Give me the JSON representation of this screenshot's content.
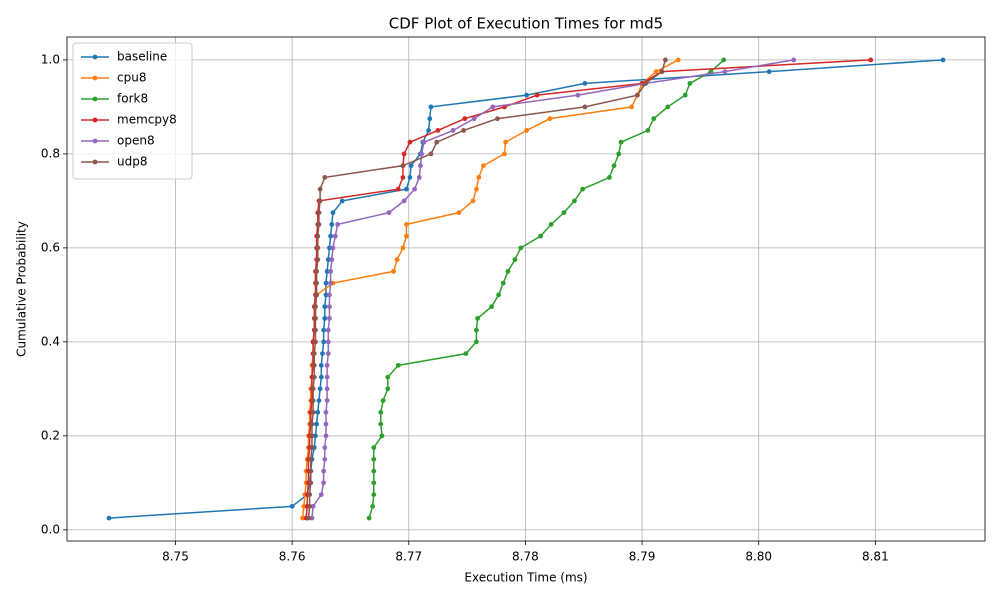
{
  "chart_data": {
    "type": "line",
    "title": "CDF Plot of Execution Times for md5",
    "x_label": "Execution Time (ms)",
    "y_label": "Cumulative Probability",
    "xlim": [
      8.7407,
      8.8194
    ],
    "ylim": [
      -0.02375,
      1.04875
    ],
    "xticks": [
      8.75,
      8.76,
      8.77,
      8.78,
      8.79,
      {
        "value": 8.8,
        "label": "8.80"
      },
      8.81
    ],
    "yticks": [
      {
        "value": 0,
        "label": "0.0"
      },
      0.2,
      0.4,
      0.6,
      0.8,
      {
        "value": 1,
        "label": "1.0"
      }
    ],
    "grid": true,
    "legend": "upper left",
    "series": [
      {
        "name": "baseline",
        "color": "#1f77b4",
        "x": [
          8.7443,
          8.76,
          8.7613,
          8.7615,
          8.7616,
          8.7617,
          8.7619,
          8.762,
          8.7621,
          8.7622,
          8.7623,
          8.7624,
          8.7625,
          8.7625,
          8.7626,
          8.7627,
          8.7627,
          8.7628,
          8.7628,
          8.7629,
          8.7629,
          8.763,
          8.7631,
          8.7632,
          8.7633,
          8.7634,
          8.7635,
          8.7643,
          8.7698,
          8.7701,
          8.7702,
          8.771,
          8.7712,
          8.7717,
          8.7718,
          8.7719,
          8.7801,
          8.7851,
          8.8009,
          8.8158
        ],
        "values": [
          0.025,
          0.05,
          0.075,
          0.1,
          0.125,
          0.15,
          0.175,
          0.2,
          0.225,
          0.25,
          0.275,
          0.3,
          0.325,
          0.35,
          0.375,
          0.4,
          0.425,
          0.45,
          0.475,
          0.5,
          0.525,
          0.55,
          0.575,
          0.6,
          0.625,
          0.65,
          0.675,
          0.7,
          0.725,
          0.75,
          0.775,
          0.8,
          0.825,
          0.85,
          0.875,
          0.9,
          0.925,
          0.95,
          0.975,
          1.0
        ]
      },
      {
        "name": "cpu8",
        "color": "#ff7f0e",
        "x": [
          8.7609,
          8.761,
          8.7611,
          8.7612,
          8.7612,
          8.7613,
          8.7614,
          8.7614,
          8.7615,
          8.7615,
          8.7616,
          8.7616,
          8.7617,
          8.7617,
          8.7618,
          8.7618,
          8.7619,
          8.762,
          8.762,
          8.7621,
          8.7635,
          8.7687,
          8.769,
          8.7695,
          8.7698,
          8.7698,
          8.7743,
          8.7755,
          8.7758,
          8.776,
          8.7764,
          8.7782,
          8.7783,
          8.7801,
          8.7821,
          8.7891,
          8.7896,
          8.79,
          8.7912,
          8.7931
        ],
        "values": [
          0.025,
          0.05,
          0.075,
          0.1,
          0.125,
          0.15,
          0.175,
          0.2,
          0.225,
          0.25,
          0.275,
          0.3,
          0.325,
          0.35,
          0.375,
          0.4,
          0.425,
          0.45,
          0.475,
          0.5,
          0.525,
          0.55,
          0.575,
          0.6,
          0.625,
          0.65,
          0.675,
          0.7,
          0.725,
          0.75,
          0.775,
          0.8,
          0.825,
          0.85,
          0.875,
          0.9,
          0.925,
          0.95,
          0.975,
          1.0
        ]
      },
      {
        "name": "fork8",
        "color": "#2ca02c",
        "x": [
          8.7666,
          8.7669,
          8.767,
          8.767,
          8.767,
          8.767,
          8.767,
          8.7677,
          8.7676,
          8.7676,
          8.7678,
          8.7682,
          8.7682,
          8.7691,
          8.7749,
          8.7758,
          8.7758,
          8.7759,
          8.7771,
          8.7777,
          8.7781,
          8.7785,
          8.7791,
          8.7796,
          8.7813,
          8.7822,
          8.7833,
          8.7842,
          8.7849,
          8.7872,
          8.7876,
          8.788,
          8.7882,
          8.7905,
          8.791,
          8.7922,
          8.7937,
          8.7941,
          8.7959,
          8.797
        ],
        "values": [
          0.025,
          0.05,
          0.075,
          0.1,
          0.125,
          0.15,
          0.175,
          0.2,
          0.225,
          0.25,
          0.275,
          0.3,
          0.325,
          0.35,
          0.375,
          0.4,
          0.425,
          0.45,
          0.475,
          0.5,
          0.525,
          0.55,
          0.575,
          0.6,
          0.625,
          0.65,
          0.675,
          0.7,
          0.725,
          0.75,
          0.775,
          0.8,
          0.825,
          0.85,
          0.875,
          0.9,
          0.925,
          0.95,
          0.975,
          1.0
        ]
      },
      {
        "name": "memcpy8",
        "color": "#d62728",
        "x": [
          8.7612,
          8.7613,
          8.7613,
          8.7614,
          8.7614,
          8.7614,
          8.7615,
          8.7615,
          8.7616,
          8.7616,
          8.7617,
          8.7617,
          8.7617,
          8.7618,
          8.7618,
          8.7618,
          8.7619,
          8.7619,
          8.7619,
          8.762,
          8.762,
          8.762,
          8.7621,
          8.7621,
          8.7621,
          8.7622,
          8.7622,
          8.7623,
          8.7691,
          8.7695,
          8.7695,
          8.7696,
          8.7701,
          8.7725,
          8.7748,
          8.7782,
          8.781,
          8.79,
          8.7917,
          8.8096
        ],
        "values": [
          0.025,
          0.05,
          0.075,
          0.1,
          0.125,
          0.15,
          0.175,
          0.2,
          0.225,
          0.25,
          0.275,
          0.3,
          0.325,
          0.35,
          0.375,
          0.4,
          0.425,
          0.45,
          0.475,
          0.5,
          0.525,
          0.55,
          0.575,
          0.6,
          0.625,
          0.65,
          0.675,
          0.7,
          0.725,
          0.75,
          0.775,
          0.8,
          0.825,
          0.85,
          0.875,
          0.9,
          0.925,
          0.95,
          0.975,
          1.0
        ]
      },
      {
        "name": "open8",
        "color": "#9467bd",
        "x": [
          8.7617,
          8.7618,
          8.7625,
          8.7627,
          8.7627,
          8.7628,
          8.7628,
          8.7629,
          8.7629,
          8.7629,
          8.763,
          8.763,
          8.763,
          8.763,
          8.7631,
          8.7631,
          8.7631,
          8.7632,
          8.7632,
          8.7632,
          8.7633,
          8.7633,
          8.7634,
          8.7635,
          8.7637,
          8.7639,
          8.7683,
          8.7696,
          8.7705,
          8.7709,
          8.771,
          8.7711,
          8.7713,
          8.7738,
          8.7756,
          8.7772,
          8.7845,
          8.7903,
          8.7971,
          8.803
        ],
        "values": [
          0.025,
          0.05,
          0.075,
          0.1,
          0.125,
          0.15,
          0.175,
          0.2,
          0.225,
          0.25,
          0.275,
          0.3,
          0.325,
          0.35,
          0.375,
          0.4,
          0.425,
          0.45,
          0.475,
          0.5,
          0.525,
          0.55,
          0.575,
          0.6,
          0.625,
          0.65,
          0.675,
          0.7,
          0.725,
          0.75,
          0.775,
          0.8,
          0.825,
          0.85,
          0.875,
          0.9,
          0.925,
          0.95,
          0.975,
          1.0
        ]
      },
      {
        "name": "udp8",
        "color": "#8c564b",
        "x": [
          8.7614,
          8.7615,
          8.7615,
          8.7616,
          8.7616,
          8.7616,
          8.7617,
          8.7617,
          8.7617,
          8.7618,
          8.7618,
          8.7618,
          8.7619,
          8.7619,
          8.7619,
          8.762,
          8.762,
          8.762,
          8.762,
          8.7621,
          8.7621,
          8.7621,
          8.7622,
          8.7622,
          8.7622,
          8.7623,
          8.7623,
          8.7624,
          8.7624,
          8.7628,
          8.7695,
          8.7719,
          8.7724,
          8.7747,
          8.7776,
          8.7851,
          8.7896,
          8.7903,
          8.7917,
          8.792
        ],
        "values": [
          0.025,
          0.05,
          0.075,
          0.1,
          0.125,
          0.15,
          0.175,
          0.2,
          0.225,
          0.25,
          0.275,
          0.3,
          0.325,
          0.35,
          0.375,
          0.4,
          0.425,
          0.45,
          0.475,
          0.5,
          0.525,
          0.55,
          0.575,
          0.6,
          0.625,
          0.65,
          0.675,
          0.7,
          0.725,
          0.75,
          0.775,
          0.8,
          0.825,
          0.85,
          0.875,
          0.9,
          0.925,
          0.95,
          0.975,
          1.0
        ]
      }
    ]
  }
}
